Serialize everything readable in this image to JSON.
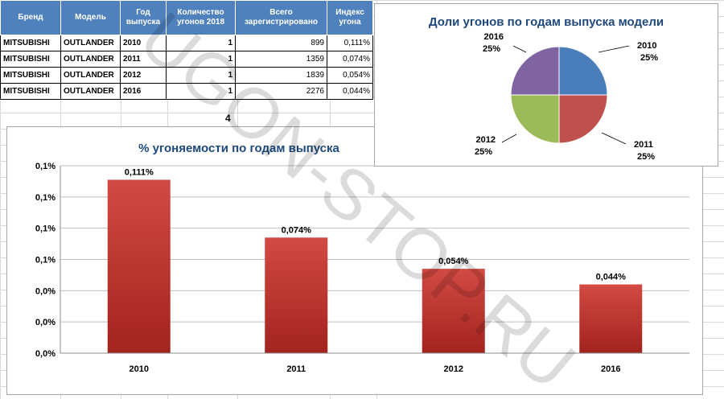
{
  "table": {
    "headers": [
      "Бренд",
      "Модель",
      "Год\nвыпуска",
      "Количество\nугонов 2018",
      "Всего\nзарегистрировано",
      "Индекс\nугона"
    ],
    "rows": [
      [
        "MITSUBISHI",
        "OUTLANDER",
        "2010",
        "1",
        "899",
        "0,111%"
      ],
      [
        "MITSUBISHI",
        "OUTLANDER",
        "2011",
        "1",
        "1359",
        "0,074%"
      ],
      [
        "MITSUBISHI",
        "OUTLANDER",
        "2012",
        "1",
        "1839",
        "0,054%"
      ],
      [
        "MITSUBISHI",
        "OUTLANDER",
        "2016",
        "1",
        "2276",
        "0,044%"
      ]
    ]
  },
  "cell_value": "4",
  "watermark": "UGON-STOP.RU",
  "colors": {
    "header_blue": "#4f81bd",
    "title_navy": "#1f497d",
    "bar_red": "#c0392b",
    "pie_blue": "#4a7ebb",
    "pie_red": "#c0504d",
    "pie_green": "#9bbb59",
    "pie_purple": "#8064a2"
  },
  "chart_data": [
    {
      "type": "pie",
      "title": "Доли угонов по годам выпуска модели",
      "categories": [
        "2010",
        "2011",
        "2012",
        "2016"
      ],
      "values": [
        25,
        25,
        25,
        25
      ],
      "labels": [
        "25%",
        "25%",
        "25%",
        "25%"
      ]
    },
    {
      "type": "bar",
      "title": "% угоняемости по годам выпуска",
      "categories": [
        "2010",
        "2011",
        "2012",
        "2016"
      ],
      "values": [
        0.111,
        0.074,
        0.054,
        0.044
      ],
      "data_labels": [
        "0,111%",
        "0,074%",
        "0,054%",
        "0,044%"
      ],
      "yticks": [
        "0,1%",
        "0,1%",
        "0,1%",
        "0,1%",
        "0,0%",
        "0,0%",
        "0,0%"
      ],
      "ylim": [
        0,
        0.12
      ],
      "grid": true
    }
  ]
}
